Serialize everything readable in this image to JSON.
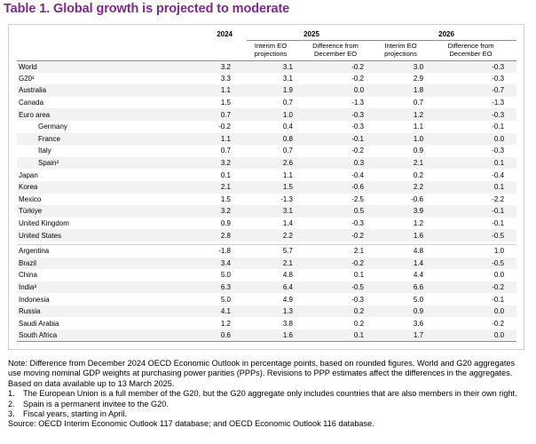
{
  "title": "Table 1. Global growth is projected to moderate",
  "header": {
    "year_2024": "2024",
    "year_2025": "2025",
    "year_2026": "2026",
    "col_interim_line1": "Interim EO",
    "col_interim_line2": "projections",
    "col_diff_line1": "Difference from",
    "col_diff_line2": "December EO"
  },
  "rows": [
    {
      "country": "World",
      "v2024": "3.2",
      "p2025": "3.1",
      "d2025": "-0.2",
      "p2026": "3.0",
      "d2026": "-0.3"
    },
    {
      "country": "G20¹",
      "v2024": "3.3",
      "p2025": "3.1",
      "d2025": "-0.2",
      "p2026": "2.9",
      "d2026": "-0.3"
    },
    {
      "country": "Australia",
      "v2024": "1.1",
      "p2025": "1.9",
      "d2025": "0.0",
      "p2026": "1.8",
      "d2026": "-0.7"
    },
    {
      "country": "Canada",
      "v2024": "1.5",
      "p2025": "0.7",
      "d2025": "-1.3",
      "p2026": "0.7",
      "d2026": "-1.3"
    },
    {
      "country": "Euro area",
      "v2024": "0.7",
      "p2025": "1.0",
      "d2025": "-0.3",
      "p2026": "1.2",
      "d2026": "-0.3"
    },
    {
      "country": "Germany",
      "v2024": "-0.2",
      "p2025": "0.4",
      "d2025": "-0.3",
      "p2026": "1.1",
      "d2026": "-0.1"
    },
    {
      "country": "France",
      "v2024": "1.1",
      "p2025": "0.8",
      "d2025": "-0.1",
      "p2026": "1.0",
      "d2026": "0.0"
    },
    {
      "country": "Italy",
      "v2024": "0.7",
      "p2025": "0.7",
      "d2025": "-0.2",
      "p2026": "0.9",
      "d2026": "-0.3"
    },
    {
      "country": "Spain²",
      "v2024": "3.2",
      "p2025": "2.6",
      "d2025": "0.3",
      "p2026": "2.1",
      "d2026": "0.1"
    },
    {
      "country": "Japan",
      "v2024": "0.1",
      "p2025": "1.1",
      "d2025": "-0.4",
      "p2026": "0.2",
      "d2026": "-0.4"
    },
    {
      "country": "Korea",
      "v2024": "2.1",
      "p2025": "1.5",
      "d2025": "-0.6",
      "p2026": "2.2",
      "d2026": "0.1"
    },
    {
      "country": "Mexico",
      "v2024": "1.5",
      "p2025": "-1.3",
      "d2025": "-2.5",
      "p2026": "-0.6",
      "d2026": "-2.2"
    },
    {
      "country": "Türkiye",
      "v2024": "3.2",
      "p2025": "3.1",
      "d2025": "0.5",
      "p2026": "3.9",
      "d2026": "-0.1"
    },
    {
      "country": "United Kingdom",
      "v2024": "0.9",
      "p2025": "1.4",
      "d2025": "-0.3",
      "p2026": "1.2",
      "d2026": "-0.1"
    },
    {
      "country": "United States",
      "v2024": "2.8",
      "p2025": "2.2",
      "d2025": "-0.2",
      "p2026": "1.6",
      "d2026": "-0.5"
    },
    {
      "country": "Argentina",
      "v2024": "-1.8",
      "p2025": "5.7",
      "d2025": "2.1",
      "p2026": "4.8",
      "d2026": "1.0"
    },
    {
      "country": "Brazil",
      "v2024": "3.4",
      "p2025": "2.1",
      "d2025": "-0.2",
      "p2026": "1.4",
      "d2026": "-0.5"
    },
    {
      "country": "China",
      "v2024": "5.0",
      "p2025": "4.8",
      "d2025": "0.1",
      "p2026": "4.4",
      "d2026": "0.0"
    },
    {
      "country": "India³",
      "v2024": "6.3",
      "p2025": "6.4",
      "d2025": "-0.5",
      "p2026": "6.6",
      "d2026": "-0.2"
    },
    {
      "country": "Indonesia",
      "v2024": "5.0",
      "p2025": "4.9",
      "d2025": "-0.3",
      "p2026": "5.0",
      "d2026": "-0.1"
    },
    {
      "country": "Russia",
      "v2024": "4.1",
      "p2025": "1.3",
      "d2025": "0.2",
      "p2026": "0.9",
      "d2026": "0.0"
    },
    {
      "country": "Saudi Arabia",
      "v2024": "1.2",
      "p2025": "3.8",
      "d2025": "0.2",
      "p2026": "3.6",
      "d2026": "-0.2"
    },
    {
      "country": "South Africa",
      "v2024": "0.6",
      "p2025": "1.6",
      "d2025": "0.1",
      "p2026": "1.7",
      "d2026": "0.0"
    }
  ],
  "notes": {
    "line1": "Note: Difference from December 2024 OECD Economic Outlook in percentage points, based on rounded figures. World and G20 aggregates",
    "line2": "use moving nominal GDP weights at purchasing power parities (PPPs). Revisions to PPP estimates affect the differences in the aggregates.",
    "line3": "Based on data available up to 13 March 2025.",
    "fn1_mark": "1.",
    "fn1": "The European Union is a full member of the G20, but the G20 aggregate only includes countries that are also members in their own right.",
    "fn2_mark": "2.",
    "fn2": "Spain is a permanent invitee to the G20.",
    "fn3_mark": "3.",
    "fn3": "Fiscal years, starting in April.",
    "source": "Source: OECD Interim Economic Outlook 117 database; and OECD Economic Outlook 116 database."
  }
}
